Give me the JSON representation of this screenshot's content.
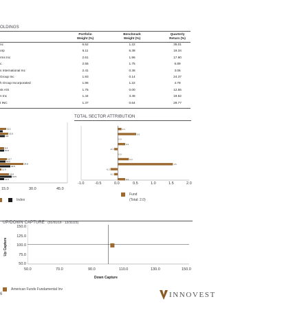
{
  "holdings": {
    "title": "OLDINGS",
    "headers": {
      "portfolio": [
        "Portfolio",
        "Weight (%)"
      ],
      "benchmark": [
        "Benchmark",
        "Weight (%)"
      ],
      "quarterly": [
        "Quarterly",
        "Return (%)"
      ]
    },
    "rows": [
      {
        "name": "nc",
        "portfolio": "6.52",
        "benchmark": "1.22",
        "quarterly": "35.01"
      },
      {
        "name": "orp",
        "portfolio": "6.11",
        "benchmark": "6.38",
        "quarterly": "19.34"
      },
      {
        "name": "rms Inc",
        "portfolio": "2.61",
        "benchmark": "1.96",
        "quarterly": "17.90"
      },
      {
        "name": "c.",
        "portfolio": "2.55",
        "benchmark": "1.75",
        "quarterly": "6.89"
      },
      {
        "name": "s International Inc",
        "portfolio": "2.41",
        "benchmark": "0.36",
        "quarterly": "3.06"
      },
      {
        "name": "Group Inc",
        "portfolio": "1.93",
        "benchmark": "0.14",
        "quarterly": "24.37"
      },
      {
        "name": "h Group Incorporated",
        "portfolio": "1.86",
        "benchmark": "1.22",
        "quarterly": "4.78"
      },
      {
        "name": "sk A/S",
        "portfolio": "1.75",
        "benchmark": "0.00",
        "quarterly": "12.55"
      },
      {
        "name": "n Inc",
        "portfolio": "1.44",
        "benchmark": "3.45",
        "quarterly": "19.52"
      },
      {
        "name": "t INC",
        "portfolio": "1.37",
        "benchmark": "0.64",
        "quarterly": "29.77"
      }
    ]
  },
  "left_chart": {
    "x_ticks": [
      "15.0",
      "30.0",
      "45.0"
    ],
    "legend_index": "Index",
    "colors": {
      "fund": "#9c6a30",
      "index": "#1a1a1a"
    },
    "bar_labels": [
      "11.1",
      "13.5",
      "8.8",
      "9.4",
      "10.9",
      "14.1",
      "12.7",
      "23.5",
      "24.8",
      "11.9",
      "12.7",
      "14.8",
      "16.5",
      "11.3"
    ]
  },
  "sector_attribution": {
    "title": "TOTAL SECTOR ATTRIBUTION",
    "legend_fund": "Fund",
    "legend_total": "(Total: 2.0)"
  },
  "chart_data": [
    {
      "type": "bar",
      "orientation": "horizontal",
      "title": "TOTAL SECTOR ATTRIBUTION",
      "x_ticks": [
        "-1.0",
        "-0.5",
        "0.0",
        "0.5",
        "1.0",
        "1.5",
        "2.0"
      ],
      "xlim": [
        -1.0,
        2.0
      ],
      "series": [
        {
          "name": "Fund",
          "values": [
            0.1,
            0.5,
            0.0,
            0.2,
            -0.1,
            0.0,
            0.3,
            1.5,
            -0.2,
            -0.1,
            0.2
          ]
        }
      ],
      "value_labels": [
        "0.1",
        "0.5",
        "0.0",
        "0.2",
        "-0.1",
        "0.0",
        "0.3",
        "1.5",
        "-0.2",
        "-0.1",
        "0.2"
      ],
      "legend": "bottom"
    },
    {
      "type": "scatter",
      "title": "UP/DOWN CAPTURE",
      "subtitle": "(01/01/19 - 12/31/23)",
      "xlabel": "Down Capture",
      "ylabel": "Up Capture",
      "x_ticks": [
        "50.0",
        "70.0",
        "90.0",
        "110.0",
        "130.0",
        "150.0"
      ],
      "y_ticks": [
        "150.0",
        "125.0",
        "100.0",
        "75.0",
        "50.0"
      ],
      "xlim": [
        50,
        150
      ],
      "ylim": [
        50,
        150
      ],
      "series": [
        {
          "name": "American Funds Fundamental Inv",
          "points": [
            {
              "x": 102.5,
              "y": 97.5
            }
          ]
        }
      ],
      "grid": false,
      "legend": "bottom-left"
    }
  ],
  "capture": {
    "title": "UP/DOWN CAPTURE",
    "subtitle": "(01/01/19 - 12/31/23)",
    "legend": "American Funds Fundamental Inv"
  },
  "footer": {
    "page": "6",
    "brand": "INNOVEST",
    "brand_color": "#8a5a26"
  }
}
